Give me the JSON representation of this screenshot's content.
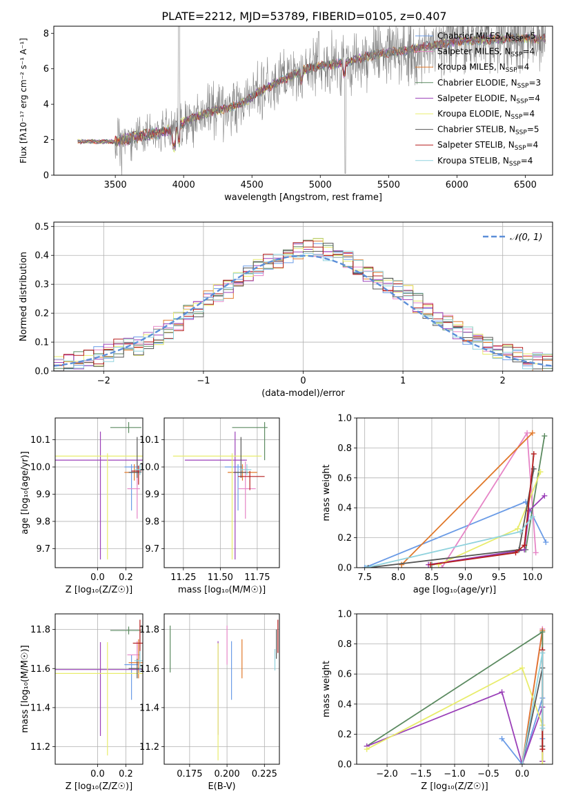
{
  "colors": {
    "cm": "#6a9be6",
    "sm": "#e684c6",
    "km": "#e0782a",
    "ce": "#5b8a60",
    "se": "#9a3fb8",
    "ke": "#e8ec6b",
    "cs": "#555555",
    "ss": "#b51c1c",
    "ks": "#8fd2dd",
    "gauss": "#5b8ed8",
    "grid": "#b0b0b0",
    "spectrum": "#808080"
  },
  "figure_title": "PLATE=2212, MJD=53789, FIBERID=0105, z=0.407",
  "chart_data": [
    {
      "id": "spectrum",
      "type": "line",
      "xlabel": "wavelength [Angstrom, rest frame]",
      "ylabel": "Flux [fλ10⁻¹⁷ erg cm⁻² s⁻¹ A⁻¹]",
      "xlim": [
        3050,
        6700
      ],
      "ylim": [
        0,
        8.4
      ],
      "xticks": [
        3500,
        4000,
        4500,
        5000,
        5500,
        6000,
        6500
      ],
      "yticks": [
        0,
        2,
        4,
        6,
        8
      ],
      "grid": false,
      "legend": [
        {
          "label": "Chabrier MILES, N",
          "sub": "SSP",
          "suffix": "=5",
          "color_key": "cm"
        },
        {
          "label": "Salpeter MILES, N",
          "sub": "SSP",
          "suffix": "=4",
          "color_key": "sm"
        },
        {
          "label": "Kroupa MILES, N",
          "sub": "SSP",
          "suffix": "=4",
          "color_key": "km"
        },
        {
          "label": "Chabrier ELODIE, N",
          "sub": "SSP",
          "suffix": "=3",
          "color_key": "ce"
        },
        {
          "label": "Salpeter ELODIE, N",
          "sub": "SSP",
          "suffix": "=4",
          "color_key": "se"
        },
        {
          "label": "Kroupa ELODIE, N",
          "sub": "SSP",
          "suffix": "=4",
          "color_key": "ke"
        },
        {
          "label": "Chabrier STELIB, N",
          "sub": "SSP",
          "suffix": "=5",
          "color_key": "cs"
        },
        {
          "label": "Salpeter STELIB, N",
          "sub": "SSP",
          "suffix": "=4",
          "color_key": "ss"
        },
        {
          "label": "Kroupa STELIB, N",
          "sub": "SSP",
          "suffix": "=4",
          "color_key": "ks"
        }
      ],
      "continuum": [
        [
          3225,
          1.9
        ],
        [
          3500,
          1.9
        ],
        [
          3550,
          2.0
        ],
        [
          3700,
          2.25
        ],
        [
          3850,
          2.4
        ],
        [
          3950,
          2.6
        ],
        [
          4000,
          3.0
        ],
        [
          4100,
          3.3
        ],
        [
          4200,
          3.6
        ],
        [
          4300,
          3.75
        ],
        [
          4400,
          3.95
        ],
        [
          4500,
          4.4
        ],
        [
          4600,
          4.9
        ],
        [
          4700,
          5.3
        ],
        [
          4800,
          5.6
        ],
        [
          4900,
          6.0
        ],
        [
          5000,
          6.15
        ],
        [
          5100,
          6.25
        ],
        [
          5200,
          6.4
        ],
        [
          5400,
          6.8
        ],
        [
          5600,
          7.0
        ],
        [
          5800,
          7.3
        ],
        [
          6000,
          7.55
        ],
        [
          6200,
          7.65
        ],
        [
          6400,
          7.7
        ],
        [
          6600,
          7.7
        ]
      ]
    },
    {
      "id": "residuals",
      "type": "line",
      "xlabel": "(data-model)/error",
      "ylabel": "Normed distribution",
      "xlim": [
        -2.5,
        2.5
      ],
      "ylim": [
        0,
        0.515
      ],
      "xticks": [
        -2,
        -1,
        0,
        1,
        2
      ],
      "yticks": [
        0.0,
        0.1,
        0.2,
        0.3,
        0.4,
        0.5
      ],
      "grid": true,
      "legend": [
        {
          "label": "𝒩(0, 1)",
          "color_key": "gauss",
          "style": "dashed"
        }
      ],
      "histogram_bins": [
        -2.5,
        -2.4,
        -2.3,
        -2.2,
        -2.1,
        -2.0,
        -1.9,
        -1.8,
        -1.7,
        -1.6,
        -1.5,
        -1.4,
        -1.3,
        -1.2,
        -1.1,
        -1.0,
        -0.9,
        -0.8,
        -0.7,
        -0.6,
        -0.5,
        -0.4,
        -0.3,
        -0.2,
        -0.1,
        0.0,
        0.1,
        0.2,
        0.3,
        0.4,
        0.5,
        0.6,
        0.7,
        0.8,
        0.9,
        1.0,
        1.1,
        1.2,
        1.3,
        1.4,
        1.5,
        1.6,
        1.7,
        1.8,
        1.9,
        2.0,
        2.1,
        2.2,
        2.3,
        2.4,
        2.5
      ],
      "histogram_mean": [
        0.02,
        0.03,
        0.035,
        0.04,
        0.05,
        0.065,
        0.08,
        0.085,
        0.085,
        0.1,
        0.12,
        0.145,
        0.17,
        0.195,
        0.215,
        0.25,
        0.27,
        0.285,
        0.31,
        0.34,
        0.355,
        0.37,
        0.39,
        0.4,
        0.41,
        0.42,
        0.425,
        0.415,
        0.395,
        0.385,
        0.36,
        0.34,
        0.315,
        0.3,
        0.28,
        0.265,
        0.235,
        0.2,
        0.18,
        0.165,
        0.145,
        0.12,
        0.1,
        0.085,
        0.075,
        0.06,
        0.05,
        0.04,
        0.03,
        0.025
      ]
    },
    {
      "id": "age-vs-Z",
      "type": "scatter",
      "xlabel": "Z [log₁₀(Z/Z☉)]",
      "ylabel": "age  [log₁₀(age/yr)]",
      "xlim": [
        -0.3,
        0.32
      ],
      "ylim": [
        9.63,
        10.18
      ],
      "xticks": [
        0.0,
        0.2
      ],
      "yticks": [
        9.7,
        9.8,
        9.9,
        10.0,
        10.1
      ],
      "grid": true,
      "points": [
        {
          "color_key": "cm",
          "x": 0.24,
          "y": 10.0,
          "xerr": [
            0.05,
            0.05
          ],
          "yerr": [
            0.16,
            0.01
          ]
        },
        {
          "color_key": "sm",
          "x": 0.28,
          "y": 9.92,
          "xerr": [
            0.07,
            0.02
          ],
          "yerr": [
            0.11,
            0.1
          ]
        },
        {
          "color_key": "km",
          "x": 0.26,
          "y": 9.98,
          "xerr": [
            0.07,
            0.04
          ],
          "yerr": [
            0.03,
            0.03
          ]
        },
        {
          "color_key": "ce",
          "x": 0.22,
          "y": 10.145,
          "xerr": [
            0.13,
            0.09
          ],
          "yerr": [
            0.02,
            0.02
          ]
        },
        {
          "color_key": "se",
          "x": 0.02,
          "y": 10.025,
          "xerr": [
            0.38,
            0.3
          ],
          "yerr": [
            0.365,
            0.105
          ]
        },
        {
          "color_key": "ke",
          "x": 0.07,
          "y": 10.04,
          "xerr": [
            0.43,
            0.25
          ],
          "yerr": [
            0.38,
            0.01
          ]
        },
        {
          "color_key": "cs",
          "x": 0.28,
          "y": 9.98,
          "xerr": [
            0.06,
            0.03
          ],
          "yerr": [
            0.02,
            0.13
          ]
        },
        {
          "color_key": "ss",
          "x": 0.29,
          "y": 9.985,
          "xerr": [
            0.05,
            0.02
          ],
          "yerr": [
            0.05,
            0.02
          ]
        },
        {
          "color_key": "ks",
          "x": 0.3,
          "y": 9.99,
          "xerr": [
            0.04,
            0.02
          ],
          "yerr": [
            0.02,
            0.02
          ]
        }
      ]
    },
    {
      "id": "age-vs-mass",
      "type": "scatter",
      "xlabel": "mass [log₁₀(M/M☉)]",
      "ylabel": "",
      "xlim": [
        11.12,
        11.9
      ],
      "ylim": [
        9.63,
        10.18
      ],
      "xticks": [
        11.25,
        11.5,
        11.75
      ],
      "yticks": [
        9.7,
        9.8,
        9.9,
        10.0,
        10.1
      ],
      "grid": true,
      "points": [
        {
          "color_key": "cm",
          "x": 11.62,
          "y": 10.0,
          "xerr": [
            0.09,
            0.03
          ],
          "yerr": [
            0.16,
            0.01
          ]
        },
        {
          "color_key": "sm",
          "x": 11.67,
          "y": 9.92,
          "xerr": [
            0.05,
            0.07
          ],
          "yerr": [
            0.11,
            0.1
          ]
        },
        {
          "color_key": "km",
          "x": 11.65,
          "y": 9.98,
          "xerr": [
            0.1,
            0.1
          ],
          "yerr": [
            0.03,
            0.03
          ]
        },
        {
          "color_key": "ce",
          "x": 11.8,
          "y": 10.145,
          "xerr": [
            0.22,
            0.02
          ],
          "yerr": [
            0.12,
            0.02
          ]
        },
        {
          "color_key": "se",
          "x": 11.6,
          "y": 10.025,
          "xerr": [
            0.34,
            0.08
          ],
          "yerr": [
            0.365,
            0.105
          ]
        },
        {
          "color_key": "ke",
          "x": 11.58,
          "y": 10.04,
          "xerr": [
            0.4,
            0.2
          ],
          "yerr": [
            0.38,
            0.01
          ]
        },
        {
          "color_key": "cs",
          "x": 11.64,
          "y": 9.98,
          "xerr": [
            0.05,
            0.05
          ],
          "yerr": [
            0.02,
            0.13
          ]
        },
        {
          "color_key": "ss",
          "x": 11.7,
          "y": 9.965,
          "xerr": [
            0.08,
            0.1
          ],
          "yerr": [
            0.05,
            0.02
          ]
        },
        {
          "color_key": "ks",
          "x": 11.68,
          "y": 9.99,
          "xerr": [
            0.05,
            0.03
          ],
          "yerr": [
            0.02,
            0.02
          ]
        }
      ]
    },
    {
      "id": "mass-weight-vs-age",
      "type": "line",
      "xlabel": "age  [log₁₀(age/yr)]",
      "ylabel": "mass weight",
      "xlim": [
        7.38,
        10.3
      ],
      "ylim": [
        0,
        1
      ],
      "xticks": [
        7.5,
        8.0,
        8.5,
        9.0,
        9.5,
        10.0
      ],
      "yticks": [
        0.0,
        0.2,
        0.4,
        0.6,
        0.8,
        1.0
      ],
      "grid": true,
      "series": [
        {
          "color_key": "cm",
          "x": [
            7.5,
            9.9,
            10.2
          ],
          "y": [
            0.0,
            0.44,
            0.17
          ]
        },
        {
          "color_key": "sm",
          "x": [
            8.65,
            9.92,
            10.05
          ],
          "y": [
            0.0,
            0.9,
            0.1
          ]
        },
        {
          "color_key": "km",
          "x": [
            8.05,
            10.0
          ],
          "y": [
            0.02,
            0.9
          ]
        },
        {
          "color_key": "ce",
          "x": [
            8.5,
            9.9,
            10.18
          ],
          "y": [
            0.02,
            0.12,
            0.88
          ]
        },
        {
          "color_key": "se",
          "x": [
            8.45,
            9.88,
            9.95,
            10.18
          ],
          "y": [
            0.02,
            0.12,
            0.38,
            0.48
          ]
        },
        {
          "color_key": "ke",
          "x": [
            8.6,
            9.78,
            10.12
          ],
          "y": [
            0.02,
            0.26,
            0.64
          ]
        },
        {
          "color_key": "cs",
          "x": [
            7.55,
            9.8,
            10.02
          ],
          "y": [
            0.0,
            0.12,
            0.66
          ]
        },
        {
          "color_key": "ss",
          "x": [
            8.48,
            9.75,
            9.88,
            10.02
          ],
          "y": [
            0.02,
            0.1,
            0.15,
            0.76
          ]
        },
        {
          "color_key": "ks",
          "x": [
            7.52,
            9.82,
            10.0
          ],
          "y": [
            0.0,
            0.24,
            0.34
          ]
        }
      ]
    },
    {
      "id": "mass-vs-Z",
      "type": "scatter",
      "xlabel": "Z [log₁₀(Z/Z☉)]",
      "ylabel": "mass [log₁₀(M/M☉)]",
      "xlim": [
        -0.3,
        0.32
      ],
      "ylim": [
        11.11,
        11.88
      ],
      "xticks": [
        0.0,
        0.2
      ],
      "yticks": [
        11.2,
        11.4,
        11.6,
        11.8
      ],
      "grid": true,
      "points": [
        {
          "color_key": "cm",
          "x": 0.24,
          "y": 11.62,
          "xerr": [
            0.05,
            0.05
          ],
          "yerr": [
            0.18,
            0.05
          ]
        },
        {
          "color_key": "sm",
          "x": 0.28,
          "y": 11.67,
          "xerr": [
            0.07,
            0.02
          ],
          "yerr": [
            0.05,
            0.07
          ]
        },
        {
          "color_key": "km",
          "x": 0.29,
          "y": 11.63,
          "xerr": [
            0.07,
            0.04
          ],
          "yerr": [
            0.08,
            0.12
          ]
        },
        {
          "color_key": "ce",
          "x": 0.22,
          "y": 11.795,
          "xerr": [
            0.13,
            0.09
          ],
          "yerr": [
            0.02,
            0.02
          ]
        },
        {
          "color_key": "se",
          "x": 0.02,
          "y": 11.595,
          "xerr": [
            0.38,
            0.3
          ],
          "yerr": [
            0.34,
            0.14
          ]
        },
        {
          "color_key": "ke",
          "x": 0.07,
          "y": 11.575,
          "xerr": [
            0.43,
            0.25
          ],
          "yerr": [
            0.42,
            0.16
          ]
        },
        {
          "color_key": "cs",
          "x": 0.28,
          "y": 11.6,
          "xerr": [
            0.06,
            0.03
          ],
          "yerr": [
            0.05,
            0.05
          ]
        },
        {
          "color_key": "ss",
          "x": 0.3,
          "y": 11.73,
          "xerr": [
            0.05,
            0.02
          ],
          "yerr": [
            0.08,
            0.12
          ]
        },
        {
          "color_key": "ks",
          "x": 0.3,
          "y": 11.64,
          "xerr": [
            0.04,
            0.02
          ],
          "yerr": [
            0.06,
            0.05
          ]
        }
      ]
    },
    {
      "id": "mass-vs-EBV",
      "type": "scatter",
      "xlabel": "E(B-V)",
      "ylabel": "",
      "xlim": [
        0.158,
        0.235
      ],
      "ylim": [
        11.11,
        11.88
      ],
      "xticks": [
        0.175,
        0.2,
        0.225
      ],
      "xtick_labels": [
        "0.175",
        "0.200",
        "0.225"
      ],
      "yticks": [
        11.2,
        11.4,
        11.6,
        11.8
      ],
      "grid": true,
      "points": [
        {
          "color_key": "cm",
          "x": 0.203,
          "y": 11.59,
          "yerr": [
            0.15,
            0.15
          ]
        },
        {
          "color_key": "sm",
          "x": 0.2,
          "y": 11.7,
          "yerr": [
            0.08,
            0.12
          ]
        },
        {
          "color_key": "km",
          "x": 0.21,
          "y": 11.65,
          "yerr": [
            0.1,
            0.1
          ]
        },
        {
          "color_key": "ce",
          "x": 0.162,
          "y": 11.7,
          "yerr": [
            0.12,
            0.12
          ]
        },
        {
          "color_key": "se",
          "x": 0.194,
          "y": 11.5,
          "yerr": [
            0.24,
            0.24
          ]
        },
        {
          "color_key": "ke",
          "x": 0.194,
          "y": 11.45,
          "yerr": [
            0.32,
            0.28
          ]
        },
        {
          "color_key": "cs",
          "x": 0.233,
          "y": 11.72,
          "yerr": [
            0.07,
            0.08
          ]
        },
        {
          "color_key": "ss",
          "x": 0.234,
          "y": 11.77,
          "yerr": [
            0.09,
            0.08
          ]
        },
        {
          "color_key": "ks",
          "x": 0.232,
          "y": 11.65,
          "yerr": [
            0.06,
            0.05
          ]
        }
      ]
    },
    {
      "id": "mass-weight-vs-Z",
      "type": "line",
      "xlabel": "Z [log₁₀(Z/Z☉)]",
      "ylabel": "mass weight",
      "xlim": [
        -2.45,
        0.45
      ],
      "ylim": [
        0,
        1
      ],
      "xticks": [
        -2.0,
        -1.5,
        -1.0,
        -0.5,
        0.0
      ],
      "yticks": [
        0.0,
        0.2,
        0.4,
        0.6,
        0.8,
        1.0
      ],
      "grid": true,
      "series": [
        {
          "color_key": "cm",
          "x": [
            -0.3,
            0.0,
            0.3,
            0.3
          ],
          "y": [
            0.17,
            0.0,
            0.44,
            0.17
          ]
        },
        {
          "color_key": "sm",
          "x": [
            0.0,
            0.3,
            0.3
          ],
          "y": [
            0.0,
            0.9,
            0.1
          ]
        },
        {
          "color_key": "km",
          "x": [
            0.0,
            0.3,
            0.3
          ],
          "y": [
            0.0,
            0.89,
            0.02
          ]
        },
        {
          "color_key": "ce",
          "x": [
            -2.3,
            0.3,
            0.3
          ],
          "y": [
            0.12,
            0.88,
            0.02
          ]
        },
        {
          "color_key": "se",
          "x": [
            -2.3,
            -0.3,
            0.0,
            0.3,
            0.3
          ],
          "y": [
            0.12,
            0.48,
            0.0,
            0.38,
            0.02
          ]
        },
        {
          "color_key": "ke",
          "x": [
            -2.3,
            0.0,
            0.3,
            0.3
          ],
          "y": [
            0.1,
            0.64,
            0.26,
            0.0
          ]
        },
        {
          "color_key": "cs",
          "x": [
            0.0,
            0.3,
            0.3
          ],
          "y": [
            0.0,
            0.64,
            0.12
          ]
        },
        {
          "color_key": "ss",
          "x": [
            0.3,
            0.3
          ],
          "y": [
            0.76,
            0.1
          ]
        },
        {
          "color_key": "ks",
          "x": [
            0.0,
            0.3,
            0.3
          ],
          "y": [
            0.0,
            0.74,
            0.24
          ]
        }
      ]
    }
  ]
}
